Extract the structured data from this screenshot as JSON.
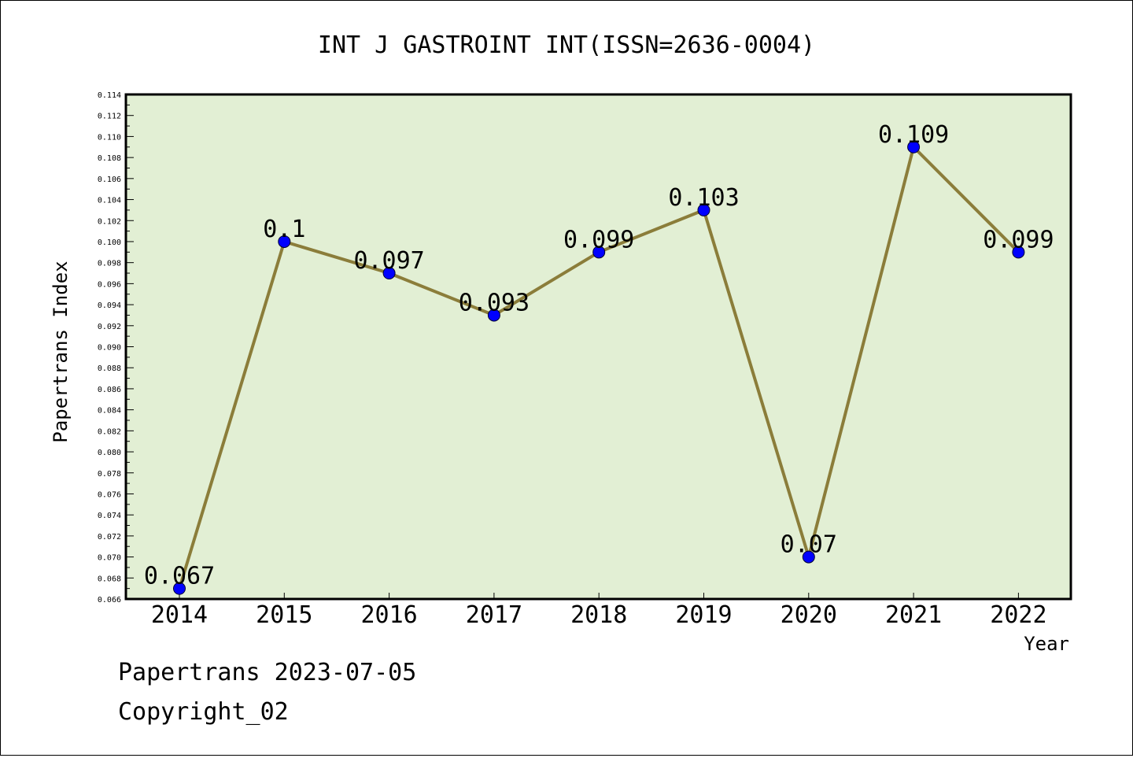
{
  "chart_data": {
    "type": "line",
    "title": "INT J GASTROINT INT(ISSN=2636-0004)",
    "xlabel": "Year",
    "ylabel": "Papertrans Index",
    "categories": [
      "2014",
      "2015",
      "2016",
      "2017",
      "2018",
      "2019",
      "2020",
      "2021",
      "2022"
    ],
    "values": [
      0.067,
      0.1,
      0.097,
      0.093,
      0.099,
      0.103,
      0.07,
      0.109,
      0.099
    ],
    "data_labels": [
      "0.067",
      "0.1",
      "0.097",
      "0.093",
      "0.099",
      "0.103",
      "0.07",
      "0.109",
      "0.099"
    ],
    "ylim": [
      0.066,
      0.114
    ],
    "y_ticks": [
      "0.066",
      "0.068",
      "0.070",
      "0.072",
      "0.074",
      "0.076",
      "0.078",
      "0.080",
      "0.082",
      "0.084",
      "0.086",
      "0.088",
      "0.090",
      "0.092",
      "0.094",
      "0.096",
      "0.098",
      "0.100",
      "0.102",
      "0.104",
      "0.106",
      "0.108",
      "0.110",
      "0.112",
      "0.114"
    ],
    "grid": false,
    "legend": "none",
    "colors": {
      "plot_background": "#e2efd4",
      "line": "#8b7d3a",
      "marker": "#0000ff"
    }
  },
  "footer": {
    "line1": "Papertrans 2023-07-05",
    "line2": "Copyright_02"
  }
}
